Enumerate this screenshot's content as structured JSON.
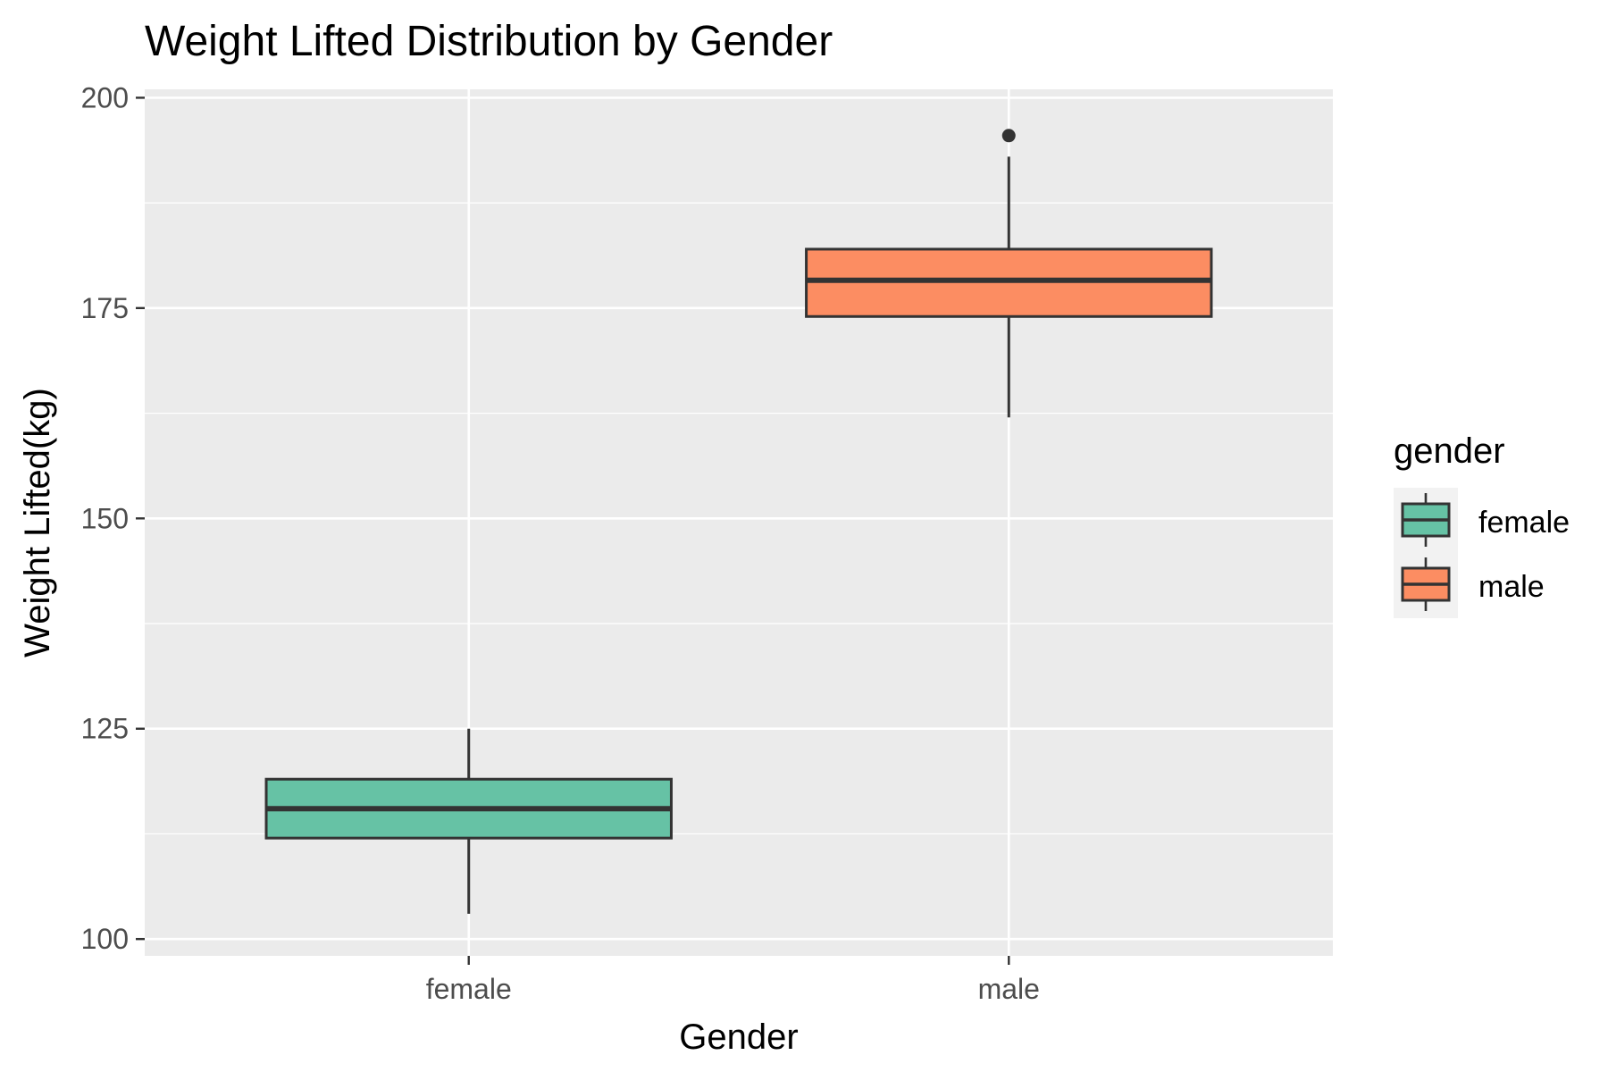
{
  "chart_data": {
    "type": "boxplot",
    "title": "Weight Lifted Distribution by Gender",
    "xlabel": "Gender",
    "ylabel": "Weight Lifted(kg)",
    "categories": [
      "female",
      "male"
    ],
    "ylim": [
      98,
      201
    ],
    "yticks": [
      100,
      125,
      150,
      175,
      200
    ],
    "grid": true,
    "legend": {
      "title": "gender",
      "position": "right",
      "entries": [
        "female",
        "male"
      ]
    },
    "boxes": [
      {
        "category": "female",
        "whisker_low": 103,
        "q1": 112,
        "median": 115.5,
        "q3": 119,
        "whisker_high": 125,
        "outliers": [],
        "color": "#66C2A5"
      },
      {
        "category": "male",
        "whisker_low": 162,
        "q1": 174,
        "median": 178.3,
        "q3": 182,
        "whisker_high": 193,
        "outliers": [
          195.5
        ],
        "color": "#FC8D62"
      }
    ]
  },
  "colors": {
    "panel_background": "#EBEBEB",
    "grid_major": "#FFFFFF",
    "box_outline": "#333333",
    "tick_label": "#4D4D4D"
  }
}
